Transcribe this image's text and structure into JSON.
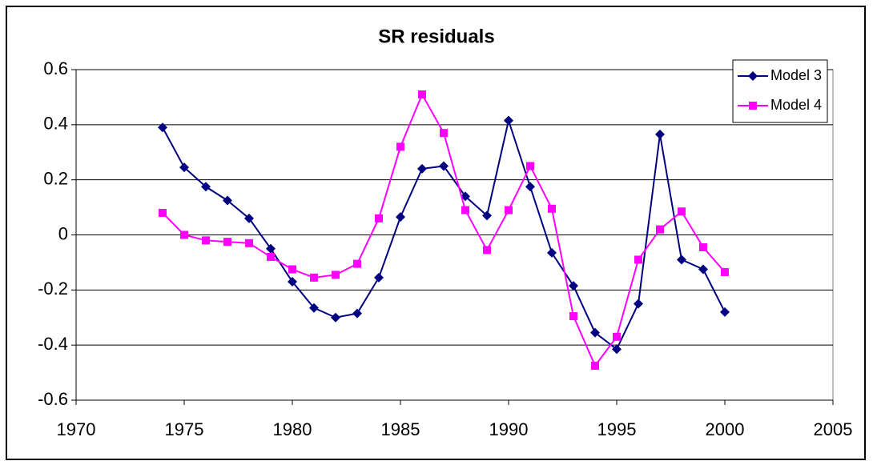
{
  "chart_data": {
    "type": "line",
    "title": "SR residuals",
    "x": [
      1974,
      1975,
      1976,
      1977,
      1978,
      1979,
      1980,
      1981,
      1982,
      1983,
      1984,
      1985,
      1986,
      1987,
      1988,
      1989,
      1990,
      1991,
      1992,
      1993,
      1994,
      1995,
      1996,
      1997,
      1998,
      1999,
      2000
    ],
    "series": [
      {
        "name": "Model 3",
        "color": "#000080",
        "marker": "diamond",
        "values": [
          0.39,
          0.245,
          0.175,
          0.125,
          0.06,
          -0.05,
          -0.17,
          -0.265,
          -0.3,
          -0.285,
          -0.155,
          0.065,
          0.24,
          0.25,
          0.14,
          0.07,
          0.415,
          0.175,
          -0.065,
          -0.185,
          -0.355,
          -0.415,
          -0.25,
          0.365,
          -0.09,
          -0.125,
          -0.28
        ]
      },
      {
        "name": "Model 4",
        "color": "#ff00ff",
        "marker": "square",
        "values": [
          0.08,
          0.0,
          -0.02,
          -0.025,
          -0.03,
          -0.08,
          -0.125,
          -0.155,
          -0.145,
          -0.105,
          0.06,
          0.32,
          0.51,
          0.37,
          0.09,
          -0.055,
          0.09,
          0.25,
          0.095,
          -0.295,
          -0.475,
          -0.37,
          -0.09,
          0.02,
          0.085,
          -0.045,
          -0.135
        ]
      }
    ],
    "xlim": [
      1970,
      2005
    ],
    "xticks": [
      1970,
      1975,
      1980,
      1985,
      1990,
      1995,
      2000,
      2005
    ],
    "ylim": [
      -0.6,
      0.6
    ],
    "yticks": [
      -0.6,
      -0.4,
      -0.2,
      0,
      0.2,
      0.4,
      0.6
    ],
    "grid": true,
    "legend": "top-right"
  }
}
